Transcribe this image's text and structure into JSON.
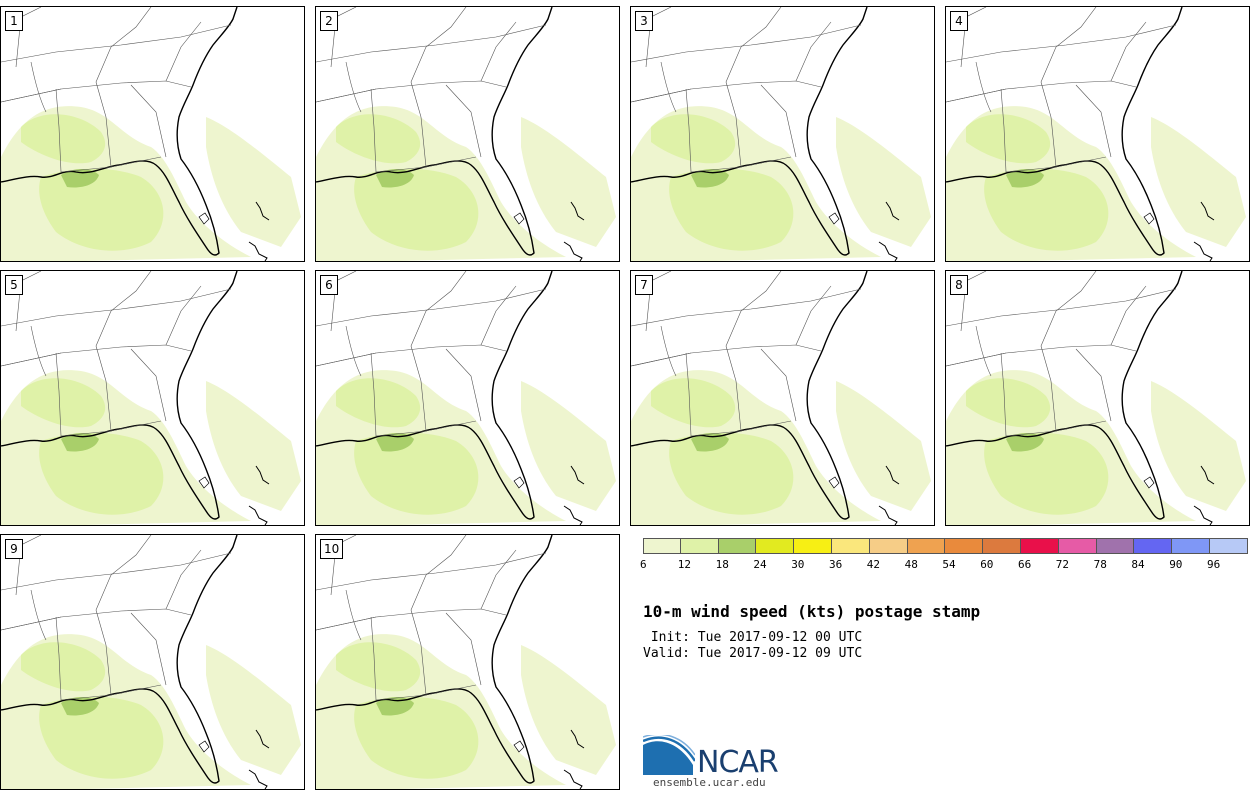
{
  "panels": [
    "1",
    "2",
    "3",
    "4",
    "5",
    "6",
    "7",
    "8",
    "9",
    "10"
  ],
  "colorbar": {
    "ticks": [
      "6",
      "12",
      "18",
      "24",
      "30",
      "36",
      "42",
      "48",
      "54",
      "60",
      "66",
      "72",
      "78",
      "84",
      "90",
      "96"
    ],
    "colors": [
      "#eef5cf",
      "#dff2a8",
      "#a9cf6a",
      "#e2ea20",
      "#f7ef14",
      "#fae77c",
      "#f6cd87",
      "#efa250",
      "#e98a3c",
      "#dc7a3e",
      "#e9104a",
      "#e65ba6",
      "#a072ac",
      "#6466f2",
      "#7f97f6",
      "#b7c9f6"
    ]
  },
  "title": "10-m wind speed (kts) postage stamp",
  "init": " Init: Tue 2017-09-12 00 UTC",
  "valid": "Valid: Tue 2017-09-12 09 UTC",
  "logo": {
    "name": "NCAR",
    "url": "ensemble.ucar.edu",
    "icon": "ncar-logo-icon"
  }
}
